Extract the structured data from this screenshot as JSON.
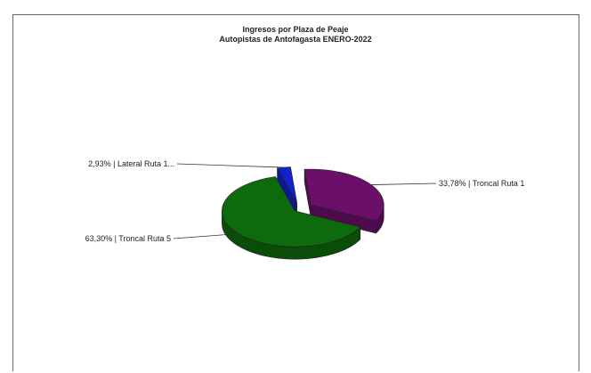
{
  "chart_data": {
    "type": "pie",
    "style": "3d-exploded",
    "title": "Ingresos por Plaza de Peaje",
    "subtitle": "Autopistas de Antofagasta ENERO-2022",
    "slices": [
      {
        "label": "33,78% | Troncal Ruta 1",
        "value": 33.78,
        "color": "#6b0f6b"
      },
      {
        "label": "63,30% | Troncal Ruta 5",
        "value": 63.3,
        "color": "#0d6b0d"
      },
      {
        "label": "2,93% | Lateral Ruta 1...",
        "value": 2.93,
        "color": "#1122cc"
      }
    ]
  }
}
